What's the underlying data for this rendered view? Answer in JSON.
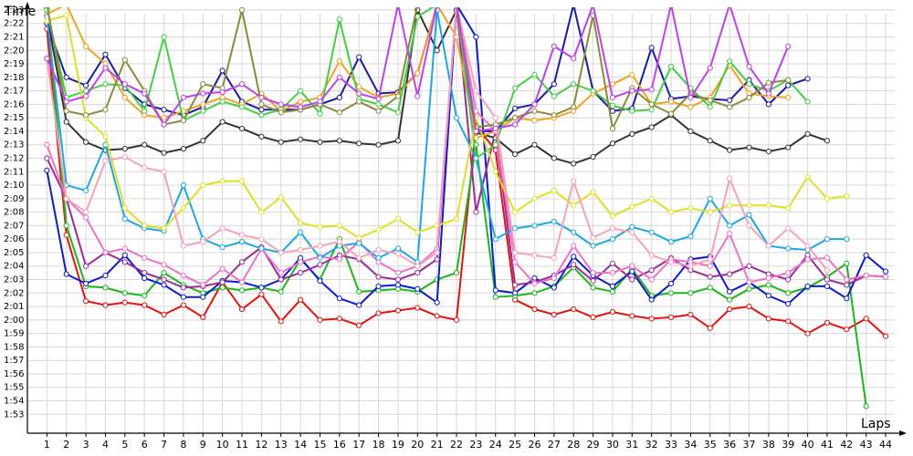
{
  "chart_data": {
    "type": "line",
    "y_label": "Time",
    "x_label": "Laps",
    "x": [
      1,
      2,
      3,
      4,
      5,
      6,
      7,
      8,
      9,
      10,
      11,
      12,
      13,
      14,
      15,
      16,
      17,
      18,
      19,
      20,
      21,
      22,
      23,
      24,
      25,
      26,
      27,
      28,
      29,
      30,
      31,
      32,
      33,
      34,
      35,
      36,
      37,
      38,
      39,
      40,
      41,
      42,
      43,
      44
    ],
    "xlim": [
      0,
      44.7
    ],
    "ylim": [
      111.6,
      143.4
    ],
    "yticks": [
      {
        "value": 113,
        "label": "1:53"
      },
      {
        "value": 114,
        "label": "1:54"
      },
      {
        "value": 115,
        "label": "1:55"
      },
      {
        "value": 116,
        "label": "1:56"
      },
      {
        "value": 117,
        "label": "1:57"
      },
      {
        "value": 118,
        "label": "1:58"
      },
      {
        "value": 119,
        "label": "1:59"
      },
      {
        "value": 120,
        "label": "2:00"
      },
      {
        "value": 121,
        "label": "2:01"
      },
      {
        "value": 122,
        "label": "2:02"
      },
      {
        "value": 123,
        "label": "2:03"
      },
      {
        "value": 124,
        "label": "2:04"
      },
      {
        "value": 125,
        "label": "2:05"
      },
      {
        "value": 126,
        "label": "2:06"
      },
      {
        "value": 127,
        "label": "2:07"
      },
      {
        "value": 128,
        "label": "2:08"
      },
      {
        "value": 129,
        "label": "2:09"
      },
      {
        "value": 130,
        "label": "2:10"
      },
      {
        "value": 131,
        "label": "2:11"
      },
      {
        "value": 132,
        "label": "2:12"
      },
      {
        "value": 133,
        "label": "2:13"
      },
      {
        "value": 134,
        "label": "2:14"
      },
      {
        "value": 135,
        "label": "2:15"
      },
      {
        "value": 136,
        "label": "2:16"
      },
      {
        "value": 137,
        "label": "2:17"
      },
      {
        "value": 138,
        "label": "2:18"
      },
      {
        "value": 139,
        "label": "2:19"
      },
      {
        "value": 140,
        "label": "2:20"
      },
      {
        "value": 141,
        "label": "2:21"
      },
      {
        "value": 142,
        "label": "2:22"
      },
      {
        "value": 143,
        "label": "2:23"
      }
    ],
    "grid": true,
    "series": [
      {
        "color": "#e8100c",
        "values": [
          141.6,
          126.3,
          121.4,
          121.1,
          121.3,
          121.1,
          120.4,
          121.1,
          120.2,
          122.8,
          120.8,
          121.9,
          119.9,
          121.5,
          120.0,
          120.1,
          119.6,
          120.5,
          120.7,
          120.9,
          120.3,
          120.0,
          134.4,
          132.6,
          121.5,
          120.8,
          120.4,
          120.8,
          120.2,
          120.6,
          120.3,
          120.1,
          120.2,
          120.4,
          119.4,
          120.8,
          121.0,
          120.1,
          119.9,
          119.0,
          119.8,
          119.3,
          120.1,
          118.8
        ]
      },
      {
        "color": "#18b818",
        "values": [
          143.1,
          127.0,
          122.5,
          122.4,
          122.0,
          121.8,
          123.5,
          122.6,
          122.0,
          122.4,
          122.2,
          122.4,
          122.1,
          124.5,
          123.0,
          126.0,
          122.1,
          122.2,
          122.3,
          122.1,
          123.0,
          123.5,
          133.0,
          121.7,
          121.8,
          122.0,
          122.5,
          123.9,
          122.4,
          122.1,
          123.8,
          121.8,
          122.0,
          122.0,
          122.4,
          121.5,
          122.3,
          122.6,
          122.0,
          122.4,
          123.2,
          124.2,
          113.6,
          null
        ]
      },
      {
        "color": "#0a1ad8",
        "values": [
          131.1,
          123.4,
          122.7,
          123.3,
          124.8,
          123.1,
          122.6,
          121.7,
          121.7,
          122.9,
          122.8,
          122.4,
          123.0,
          124.6,
          122.9,
          121.6,
          121.1,
          122.5,
          122.6,
          122.3,
          121.3,
          143.4,
          141.0,
          122.2,
          122.0,
          123.1,
          122.4,
          124.7,
          123.3,
          122.5,
          123.6,
          121.5,
          122.7,
          124.5,
          124.7,
          122.1,
          122.8,
          121.8,
          121.2,
          122.5,
          122.5,
          121.6,
          124.8,
          123.6
        ]
      },
      {
        "color": "#9a2a9a",
        "values": [
          132.0,
          129.0,
          124.0,
          125.0,
          124.3,
          123.5,
          123.0,
          122.4,
          122.5,
          122.8,
          124.3,
          125.4,
          123.0,
          123.5,
          124.1,
          124.8,
          124.5,
          123.2,
          123.0,
          123.5,
          124.5,
          143.4,
          128.0,
          134.0,
          122.6,
          122.8,
          123.3,
          124.1,
          122.9,
          124.2,
          123.0,
          123.7,
          124.6,
          123.7,
          123.2,
          123.4,
          124.0,
          123.4,
          123.0,
          124.8,
          123.0,
          122.6,
          123.3,
          123.2
        ]
      },
      {
        "color": "#333333",
        "values": [
          142.6,
          134.7,
          133.2,
          132.6,
          132.7,
          133.0,
          132.4,
          132.7,
          133.3,
          134.7,
          134.2,
          133.6,
          133.2,
          133.4,
          133.2,
          133.3,
          133.1,
          133.0,
          133.3,
          143.0,
          140.0,
          143.0,
          133.9,
          133.5,
          132.3,
          133.0,
          132.0,
          131.6,
          132.1,
          133.1,
          133.8,
          134.3,
          135.2,
          134.0,
          133.3,
          132.6,
          132.8,
          132.5,
          132.8,
          133.8,
          133.3,
          null,
          null,
          null
        ]
      },
      {
        "color": "#1a1aa8",
        "values": [
          142.0,
          138.0,
          137.4,
          139.7,
          137.2,
          136.0,
          135.6,
          135.2,
          135.8,
          138.5,
          136.2,
          135.6,
          135.6,
          135.6,
          136.0,
          136.5,
          139.5,
          136.8,
          136.9,
          138.3,
          143.4,
          143.4,
          134.0,
          134.0,
          135.7,
          136.0,
          137.5,
          143.4,
          137.0,
          135.5,
          135.7,
          140.2,
          136.4,
          136.6,
          136.4,
          136.3,
          137.8,
          136.0,
          137.4,
          137.9,
          null,
          null,
          null,
          null
        ]
      },
      {
        "color": "#f4a020",
        "values": [
          142.7,
          143.4,
          140.3,
          139.0,
          136.5,
          135.2,
          135.0,
          135.5,
          136.0,
          136.5,
          136.0,
          136.8,
          135.5,
          136.2,
          136.5,
          139.2,
          137.3,
          136.5,
          136.8,
          138.3,
          143.4,
          141.0,
          133.5,
          134.0,
          135.0,
          134.8,
          135.0,
          135.5,
          136.8,
          137.5,
          138.2,
          136.0,
          136.2,
          135.8,
          136.5,
          138.9,
          136.8,
          136.6,
          136.5,
          null,
          null,
          null,
          null,
          null
        ]
      },
      {
        "color": "#f070c8",
        "values": [
          133.0,
          129.0,
          127.6,
          125.0,
          125.3,
          124.6,
          124.1,
          123.3,
          122.6,
          123.8,
          122.8,
          125.3,
          123.5,
          124.3,
          124.7,
          124.5,
          125.8,
          124.3,
          123.5,
          124.0,
          125.3,
          143.4,
          135.5,
          134.0,
          124.3,
          122.7,
          123.1,
          125.5,
          123.5,
          123.5,
          124.0,
          123.0,
          124.5,
          124.3,
          124.0,
          126.4,
          122.8,
          123.1,
          123.5,
          124.5,
          124.6,
          123.0,
          123.3,
          123.2
        ]
      },
      {
        "color": "#40d040",
        "values": [
          143.0,
          136.5,
          137.0,
          137.5,
          137.4,
          135.5,
          141.0,
          134.8,
          135.5,
          136.2,
          135.8,
          135.2,
          135.6,
          137.0,
          135.3,
          142.3,
          136.4,
          136.0,
          135.4,
          142.5,
          143.4,
          143.4,
          132.0,
          133.0,
          137.2,
          138.2,
          136.6,
          137.5,
          137.0,
          135.9,
          135.5,
          135.6,
          138.8,
          137.2,
          135.8,
          139.2,
          137.5,
          137.0,
          137.8,
          136.2,
          null,
          null,
          null,
          null
        ]
      },
      {
        "color": "#18a8e8",
        "values": [
          142.5,
          130.0,
          129.6,
          133.0,
          127.5,
          126.8,
          126.6,
          130.0,
          126.0,
          125.4,
          125.8,
          125.3,
          125.0,
          126.5,
          124.6,
          125.5,
          125.7,
          124.6,
          125.3,
          124.3,
          143.0,
          135.0,
          132.0,
          126.0,
          126.8,
          127.0,
          127.3,
          126.5,
          125.5,
          126.0,
          126.9,
          126.5,
          125.8,
          126.2,
          129.0,
          127.0,
          127.8,
          125.5,
          125.3,
          125.2,
          126.0,
          126.0,
          null,
          null
        ]
      },
      {
        "color": "#e0e020",
        "values": [
          142.2,
          142.6,
          135.0,
          133.6,
          128.3,
          127.0,
          126.8,
          128.3,
          130.0,
          130.3,
          130.3,
          128.0,
          129.1,
          127.2,
          126.9,
          127.0,
          126.1,
          126.7,
          127.5,
          126.5,
          127.0,
          127.5,
          135.0,
          131.0,
          128.0,
          129.0,
          129.6,
          128.5,
          129.5,
          127.7,
          128.4,
          129.0,
          128.0,
          128.3,
          128.0,
          128.5,
          128.5,
          128.5,
          128.3,
          130.6,
          129.0,
          129.2,
          null,
          null
        ]
      },
      {
        "color": "#f8a0b8",
        "values": [
          139.4,
          129.0,
          128.0,
          131.8,
          132.1,
          131.3,
          131.0,
          125.5,
          125.8,
          126.8,
          126.3,
          126.0,
          125.0,
          125.2,
          125.5,
          125.8,
          124.6,
          125.2,
          124.9,
          124.0,
          125.0,
          143.4,
          137.0,
          135.0,
          125.0,
          124.8,
          124.6,
          130.3,
          126.1,
          126.8,
          126.5,
          124.8,
          124.3,
          124.0,
          124.5,
          130.5,
          127.0,
          125.5,
          126.8,
          125.5,
          123.7,
          null,
          null,
          null
        ]
      },
      {
        "color": "#8a8a3a",
        "values": [
          143.4,
          135.5,
          135.2,
          135.6,
          139.3,
          137.0,
          134.5,
          134.8,
          137.5,
          137.2,
          143.0,
          136.0,
          135.4,
          135.6,
          136.0,
          135.4,
          136.2,
          135.5,
          136.6,
          143.4,
          143.4,
          143.4,
          134.3,
          134.5,
          135.0,
          135.5,
          135.2,
          135.8,
          142.6,
          134.2,
          137.2,
          136.0,
          135.3,
          136.8,
          136.3,
          135.8,
          136.5,
          137.6,
          137.8,
          null,
          null,
          null,
          null,
          null
        ]
      },
      {
        "color": "#c040f0",
        "values": [
          139.4,
          136.2,
          136.6,
          138.7,
          137.5,
          136.8,
          134.5,
          136.5,
          136.8,
          136.9,
          137.5,
          136.5,
          136.0,
          135.8,
          136.2,
          138.0,
          136.8,
          136.4,
          143.4,
          136.6,
          143.4,
          143.4,
          134.0,
          134.2,
          134.5,
          136.0,
          140.3,
          139.4,
          143.4,
          136.5,
          137.0,
          137.1,
          143.4,
          136.5,
          138.7,
          143.4,
          138.8,
          136.8,
          140.3,
          null,
          null,
          null,
          null,
          null
        ]
      }
    ]
  }
}
